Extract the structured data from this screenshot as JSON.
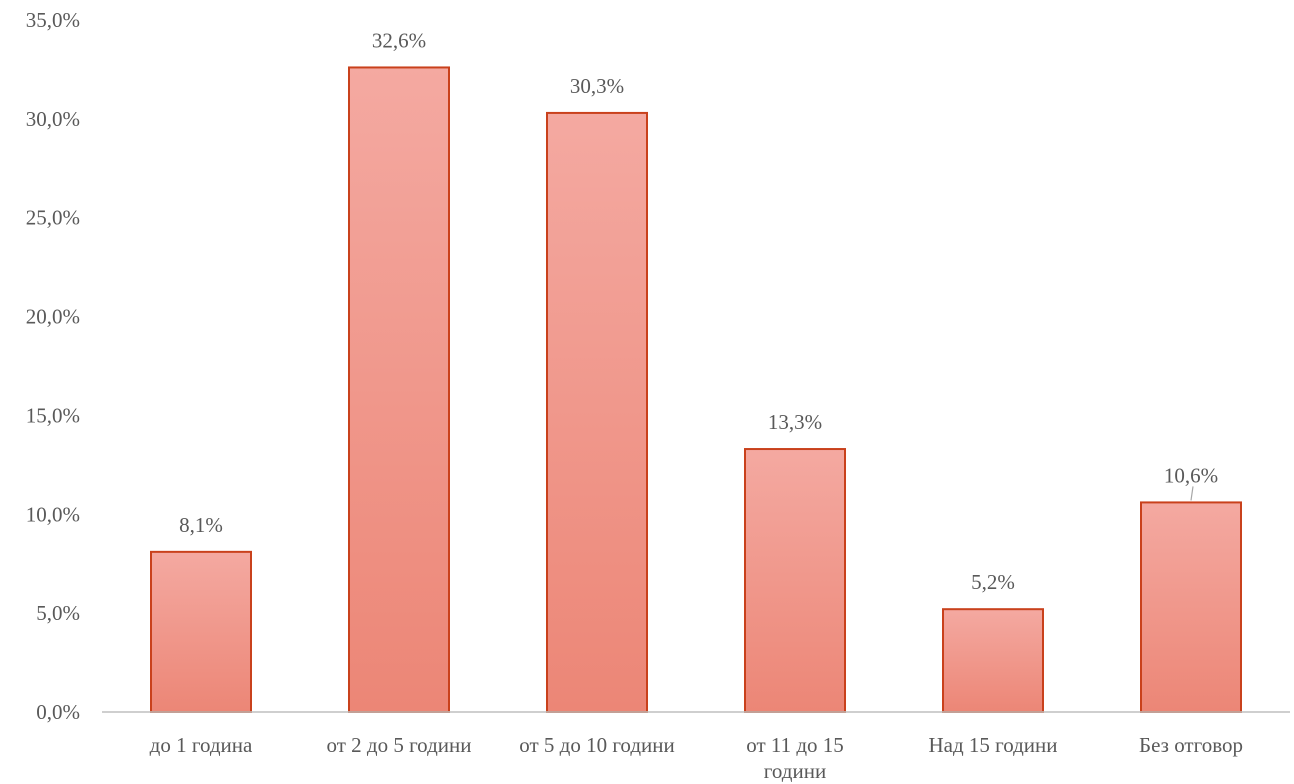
{
  "chart_data": {
    "type": "bar",
    "categories": [
      [
        "до 1 година"
      ],
      [
        "от 2 до 5 години"
      ],
      [
        "от 5 до 10 години"
      ],
      [
        "от 11 до 15",
        "години"
      ],
      [
        "Над 15 години"
      ],
      [
        "Без отговор"
      ]
    ],
    "values": [
      8.1,
      32.6,
      30.3,
      13.3,
      5.2,
      10.6
    ],
    "value_labels": [
      "8,1%",
      "32,6%",
      "30,3%",
      "13,3%",
      "5,2%",
      "10,6%"
    ],
    "yticks": [
      0,
      5,
      10,
      15,
      20,
      25,
      30,
      35
    ],
    "ytick_labels": [
      "0,0%",
      "5,0%",
      "10,0%",
      "15,0%",
      "20,0%",
      "25,0%",
      "30,0%",
      "35,0%"
    ],
    "ylim": [
      0,
      35
    ],
    "grid": false,
    "legend": "none",
    "title": "",
    "xlabel": "",
    "ylabel": "",
    "colors": {
      "bar_top": "#f4a9a1",
      "bar_bottom": "#ec8676",
      "bar_border": "#c9411c",
      "text": "#595959",
      "axis": "#bfbfbf"
    }
  }
}
